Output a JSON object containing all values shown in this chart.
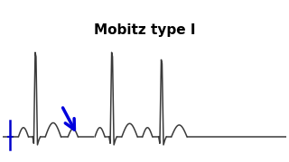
{
  "title": "Mobitz type I",
  "title_fontsize": 11,
  "title_fontweight": "bold",
  "bg_color": "#ffffff",
  "ecg_color": "#3a3a3a",
  "blue_line_color": "#0000cc",
  "arrow_color": "#0000dd",
  "figsize": [
    3.2,
    1.8
  ],
  "dpi": 100,
  "xlim": [
    0,
    10
  ],
  "ylim": [
    -0.6,
    3.2
  ]
}
